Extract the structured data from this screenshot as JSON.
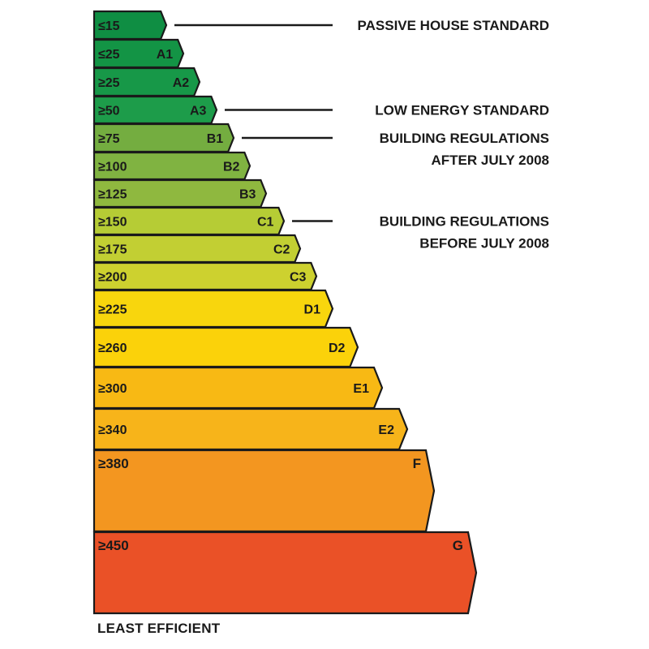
{
  "bands": [
    {
      "threshold": "≤15",
      "grade": "",
      "color": "#0f8e43"
    },
    {
      "threshold": "≤25",
      "grade": "A1",
      "color": "#139445"
    },
    {
      "threshold": "≥25",
      "grade": "A2",
      "color": "#179848"
    },
    {
      "threshold": "≥50",
      "grade": "A3",
      "color": "#1d9c4a"
    },
    {
      "threshold": "≥75",
      "grade": "B1",
      "color": "#74ad40"
    },
    {
      "threshold": "≥100",
      "grade": "B2",
      "color": "#80b341"
    },
    {
      "threshold": "≥125",
      "grade": "B3",
      "color": "#8fb83f"
    },
    {
      "threshold": "≥150",
      "grade": "C1",
      "color": "#b6cc35"
    },
    {
      "threshold": "≥175",
      "grade": "C2",
      "color": "#c2cf33"
    },
    {
      "threshold": "≥200",
      "grade": "C3",
      "color": "#cdd12f"
    },
    {
      "threshold": "≥225",
      "grade": "D1",
      "color": "#f8d60d"
    },
    {
      "threshold": "≥260",
      "grade": "D2",
      "color": "#fbd20a"
    },
    {
      "threshold": "≥300",
      "grade": "E1",
      "color": "#f8b914"
    },
    {
      "threshold": "≥340",
      "grade": "E2",
      "color": "#f7b41a"
    },
    {
      "threshold": "≥380",
      "grade": "F",
      "color": "#f39620"
    },
    {
      "threshold": "≥450",
      "grade": "G",
      "color": "#ea5127"
    }
  ],
  "callouts": [
    {
      "band_index": 0,
      "lines": [
        "PASSIVE HOUSE STANDARD"
      ]
    },
    {
      "band_index": 3,
      "lines": [
        "LOW ENERGY STANDARD"
      ]
    },
    {
      "band_index": 4,
      "lines": [
        "BUILDING REGULATIONS",
        "AFTER JULY 2008"
      ]
    },
    {
      "band_index": 7,
      "lines": [
        "BUILDING REGULATIONS",
        "BEFORE JULY 2008"
      ]
    }
  ],
  "footer_label": "LEAST EFFICIENT"
}
